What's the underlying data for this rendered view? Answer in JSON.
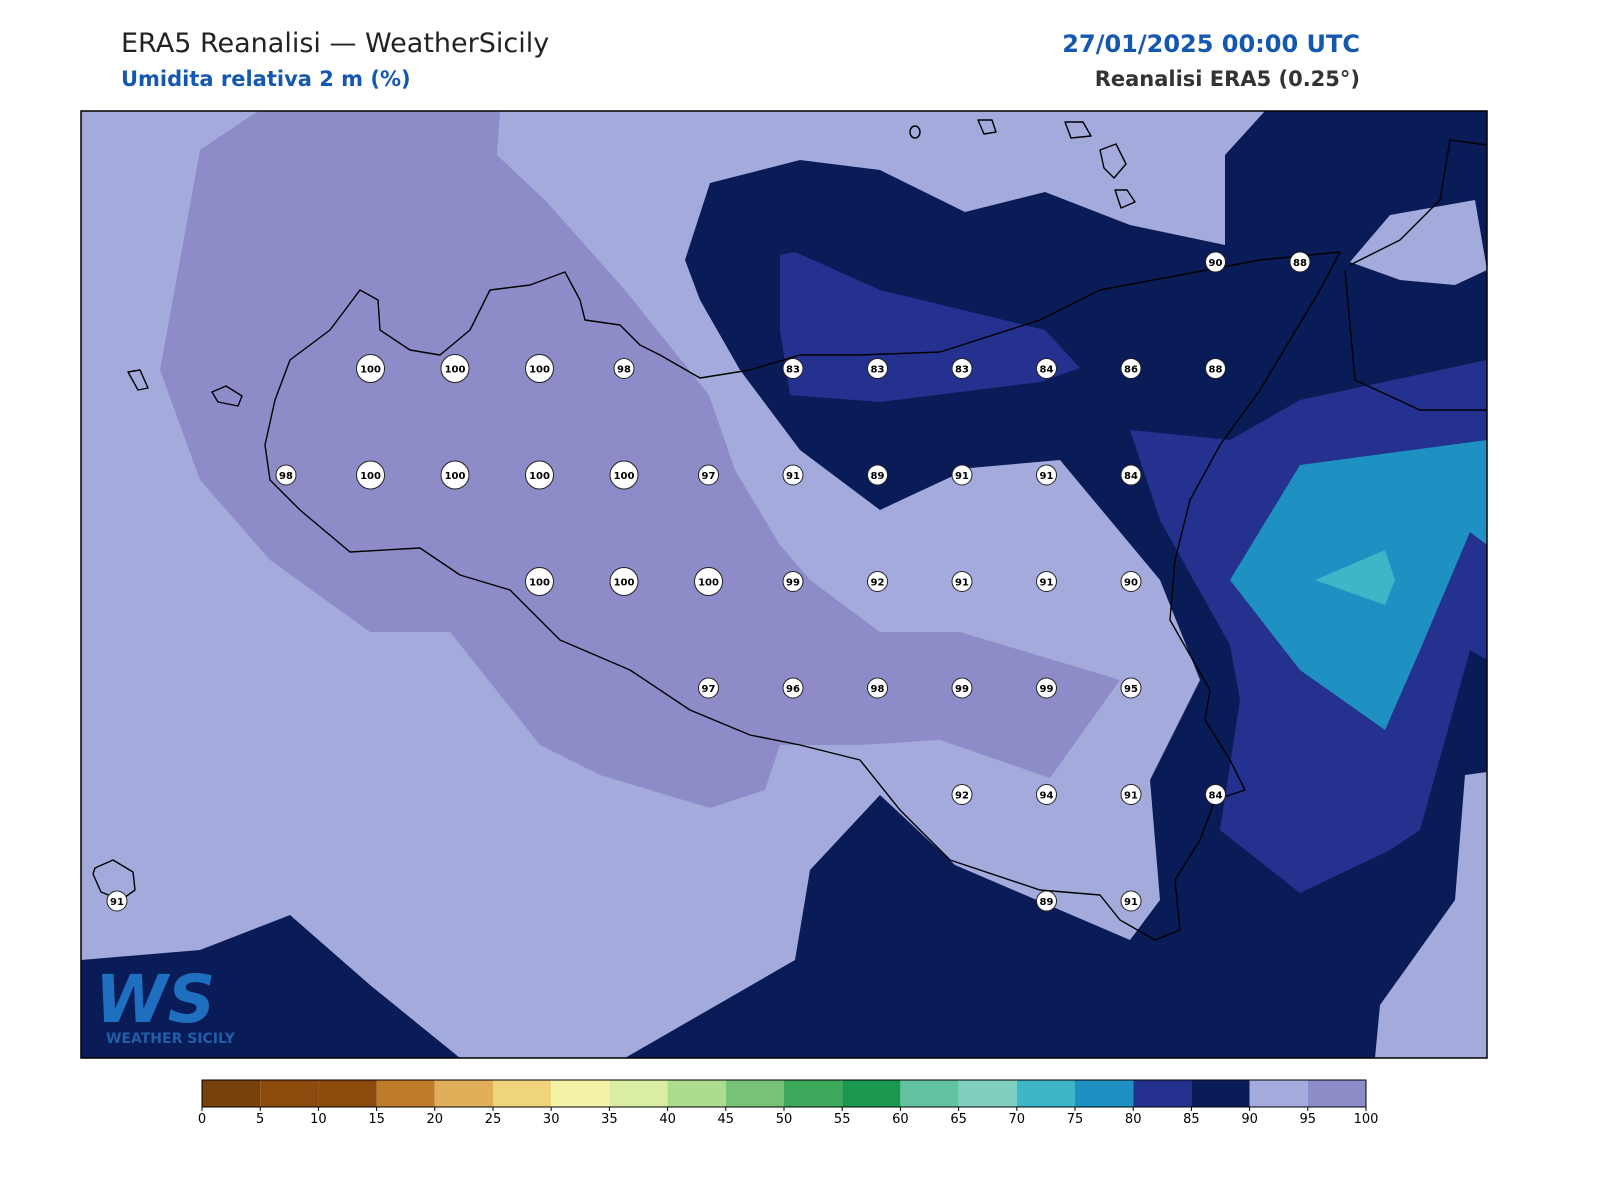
{
  "header": {
    "title": "ERA5 Reanalisi — WeatherSicily",
    "subtitle": "Umidita relativa 2 m (%)",
    "datetime": "27/01/2025 00:00 UTC",
    "source": "Reanalisi ERA5 (0.25°)"
  },
  "logo": {
    "mark": "WS",
    "name": "WEATHER SICILY"
  },
  "map": {
    "grid": [
      [
        null,
        null,
        null,
        null,
        null,
        null,
        null,
        null,
        null,
        null,
        null,
        null,
        null,
        90,
        88
      ],
      [
        null,
        null,
        null,
        100,
        100,
        100,
        98,
        null,
        83,
        83,
        83,
        84,
        86,
        88,
        null
      ],
      [
        null,
        null,
        98,
        100,
        100,
        100,
        100,
        97,
        91,
        89,
        91,
        91,
        84,
        null,
        null
      ],
      [
        null,
        null,
        null,
        null,
        null,
        100,
        100,
        100,
        99,
        92,
        91,
        91,
        90,
        null,
        null
      ],
      [
        null,
        null,
        null,
        null,
        null,
        null,
        null,
        97,
        96,
        98,
        99,
        99,
        95,
        null,
        null
      ],
      [
        null,
        null,
        null,
        null,
        null,
        null,
        null,
        null,
        null,
        null,
        92,
        94,
        91,
        84,
        null
      ],
      [
        91,
        null,
        null,
        null,
        null,
        null,
        null,
        null,
        null,
        null,
        null,
        89,
        91,
        null,
        null
      ]
    ]
  },
  "colorbar": {
    "ticks": [
      0,
      5,
      10,
      15,
      20,
      25,
      30,
      35,
      40,
      45,
      50,
      55,
      60,
      65,
      70,
      75,
      80,
      85,
      90,
      95,
      100
    ],
    "colors": [
      "#784109",
      "#8c4a0d",
      "#8c4a0d",
      "#bf7d2c",
      "#e1ae5a",
      "#f0d47c",
      "#f5f3a6",
      "#d9eda3",
      "#addc8e",
      "#77c378",
      "#3ea85b",
      "#1a9850",
      "#62c2a2",
      "#80d0c0",
      "#3eb6c7",
      "#1e90c2",
      "#25318f",
      "#0a1c58",
      "#a4abdc",
      "#8e8cc8"
    ]
  }
}
